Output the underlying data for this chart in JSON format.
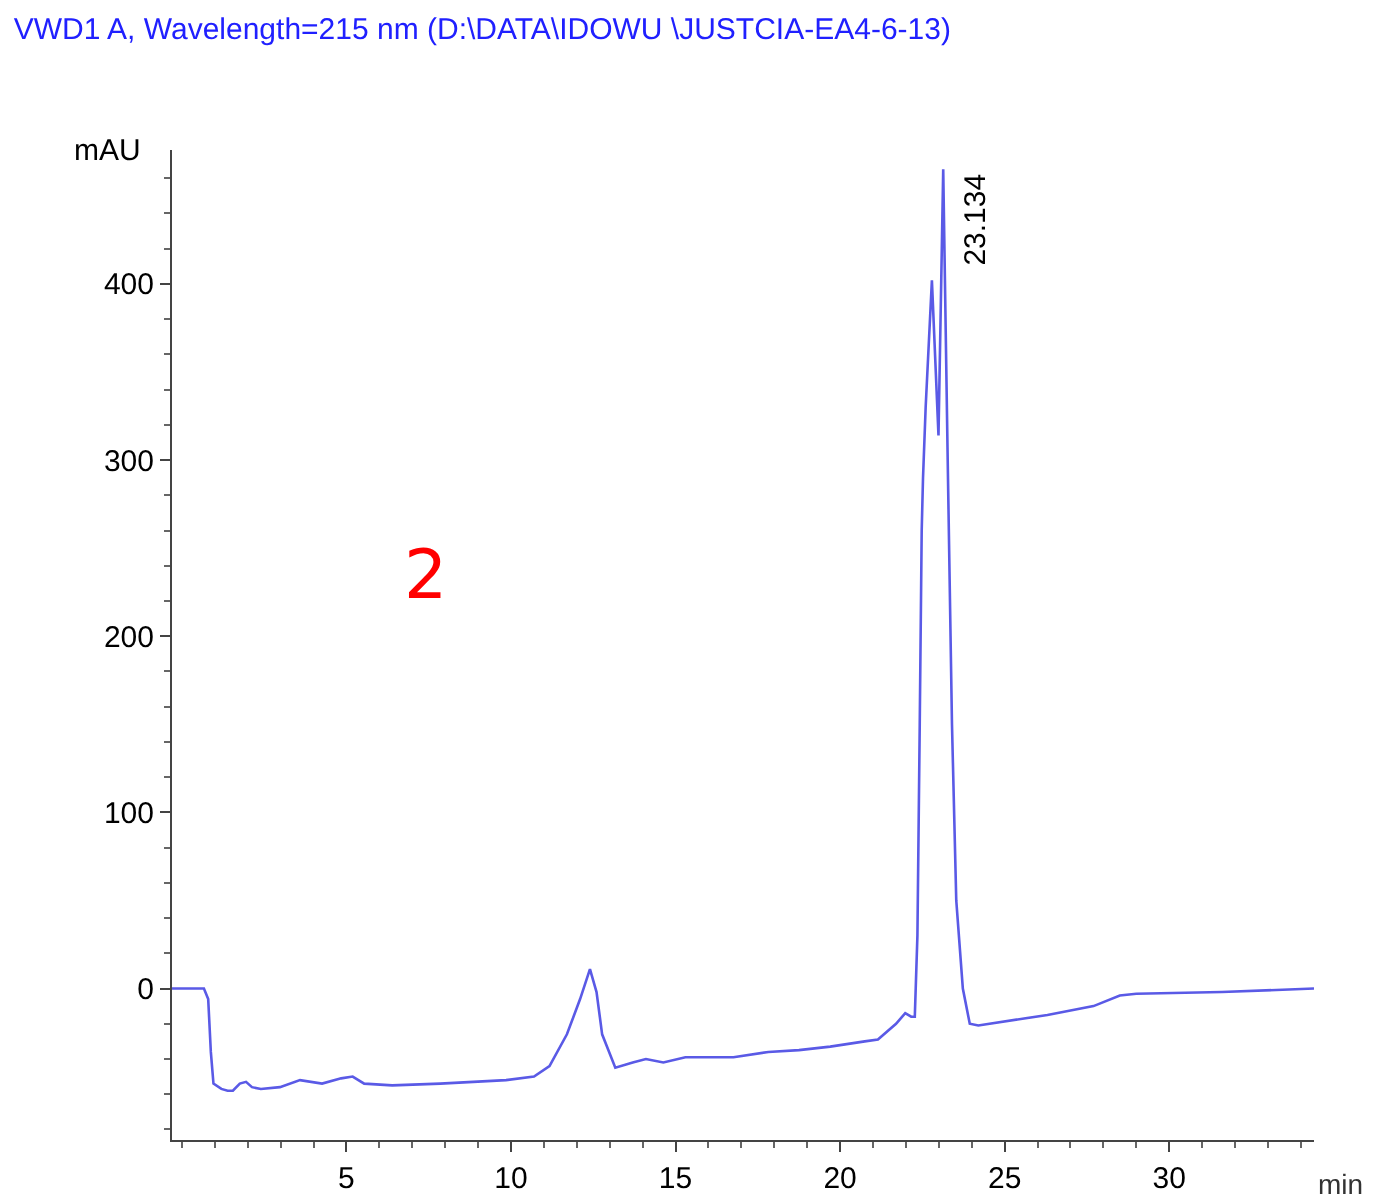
{
  "chart_data": {
    "type": "line",
    "title": "VWD1 A, Wavelength=215 nm (D:\\DATA\\IDOWU \\JUSTCIA-EA4-6-13)",
    "xlabel": "min",
    "ylabel": "mAU",
    "xlim": [
      -0.3,
      34.4
    ],
    "ylim": [
      -86,
      476
    ],
    "xticks": [
      5,
      10,
      15,
      20,
      25,
      30
    ],
    "yticks": [
      0,
      100,
      200,
      300,
      400
    ],
    "grid": false,
    "marker": "none",
    "line_style": "solid",
    "annotations": [
      "2",
      {
        "text": "23.134",
        "x": 23.134,
        "y": 465
      }
    ],
    "series": [
      {
        "color": "#5a5ae6",
        "x": [
          -0.3,
          0.67,
          0.8,
          0.88,
          0.96,
          1.2,
          1.39,
          1.55,
          1.76,
          1.95,
          2.13,
          2.4,
          2.98,
          3.59,
          4.26,
          4.84,
          5.19,
          5.54,
          6.39,
          7.85,
          9.85,
          10.7,
          11.17,
          11.7,
          12.1,
          12.4,
          12.6,
          12.77,
          13.17,
          13.7,
          14.1,
          14.63,
          15.3,
          15.7,
          16.76,
          17.82,
          18.75,
          19.7,
          20.75,
          21.15,
          21.7,
          21.98,
          22.16,
          22.27,
          22.35,
          22.42,
          22.48,
          22.52,
          22.6,
          22.79,
          22.99,
          23.134,
          23.27,
          23.4,
          23.53,
          23.73,
          23.94,
          24.2,
          26.3,
          27.7,
          28.5,
          29.0,
          31.6,
          34.4
        ],
        "values": [
          0,
          0,
          -6,
          -36,
          -54,
          -57,
          -58,
          -58,
          -54,
          -53,
          -56,
          -57,
          -56,
          -52,
          -54,
          -51,
          -50,
          -54,
          -55,
          -54,
          -52,
          -50,
          -44,
          -26,
          -6,
          11,
          -2,
          -26,
          -45,
          -42,
          -40,
          -42,
          -39,
          -39,
          -39,
          -36,
          -35,
          -33,
          -30,
          -29,
          -20,
          -14,
          -16,
          -16,
          30,
          150,
          260,
          290,
          330,
          402,
          314,
          465,
          300,
          150,
          50,
          0,
          -20,
          -21,
          -15,
          -10,
          -4,
          -3,
          -2,
          0
        ]
      }
    ]
  }
}
